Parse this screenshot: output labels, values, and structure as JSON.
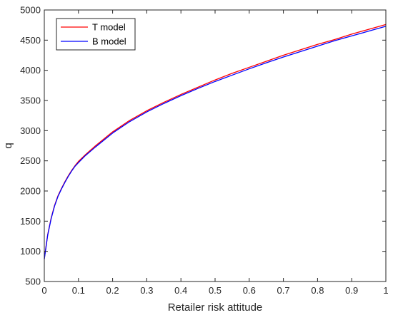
{
  "chart_data": {
    "type": "line",
    "title": "",
    "xlabel": "Retailer risk attitude",
    "ylabel": "q",
    "xlim": [
      0,
      1
    ],
    "ylim": [
      500,
      5000
    ],
    "xticks": [
      0,
      0.1,
      0.2,
      0.3,
      0.4,
      0.5,
      0.6,
      0.7,
      0.8,
      0.9,
      1
    ],
    "xtick_labels": [
      "0",
      "0.1",
      "0.2",
      "0.3",
      "0.4",
      "0.5",
      "0.6",
      "0.7",
      "0.8",
      "0.9",
      "1"
    ],
    "yticks": [
      500,
      1000,
      1500,
      2000,
      2500,
      3000,
      3500,
      4000,
      4500,
      5000
    ],
    "ytick_labels": [
      "500",
      "1000",
      "1500",
      "2000",
      "2500",
      "3000",
      "3500",
      "4000",
      "4500",
      "5000"
    ],
    "grid": false,
    "legend_position": "top-left",
    "x": [
      0,
      0.005,
      0.01,
      0.02,
      0.03,
      0.04,
      0.05,
      0.06,
      0.07,
      0.08,
      0.09,
      0.1,
      0.12,
      0.15,
      0.2,
      0.25,
      0.3,
      0.35,
      0.4,
      0.45,
      0.5,
      0.55,
      0.6,
      0.65,
      0.7,
      0.75,
      0.8,
      0.85,
      0.9,
      0.95,
      1
    ],
    "series": [
      {
        "name": "T model",
        "color": "#ff0000",
        "values": [
          880,
          1080,
          1280,
          1550,
          1760,
          1920,
          2040,
          2150,
          2250,
          2340,
          2420,
          2490,
          2600,
          2750,
          2980,
          3170,
          3330,
          3470,
          3600,
          3720,
          3840,
          3950,
          4050,
          4150,
          4250,
          4340,
          4430,
          4510,
          4600,
          4680,
          4760
        ]
      },
      {
        "name": "B model",
        "color": "#0000ff",
        "values": [
          870,
          1070,
          1270,
          1540,
          1750,
          1910,
          2030,
          2140,
          2240,
          2330,
          2410,
          2470,
          2585,
          2730,
          2960,
          3150,
          3310,
          3450,
          3580,
          3700,
          3815,
          3920,
          4025,
          4125,
          4220,
          4310,
          4400,
          4490,
          4570,
          4650,
          4730
        ]
      }
    ]
  }
}
